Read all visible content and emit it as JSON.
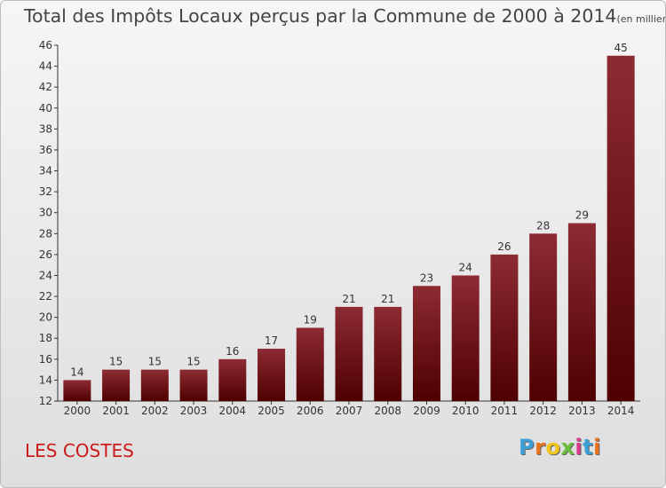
{
  "colors": {
    "bar_light": "#8d2b33",
    "bar_dark": "#4e0000",
    "commune": "#cc1a1a",
    "logo": [
      "#3fa0d8",
      "#e8731c",
      "#f0c419",
      "#6cbf3c",
      "#d83a8c",
      "#3fa0d8",
      "#e8731c"
    ]
  },
  "chart_data": {
    "type": "bar",
    "title": "Total des Impôts Locaux perçus par la Commune de 2000 à 2014",
    "title_unit": "(en milliers d'€)",
    "categories": [
      "2000",
      "2001",
      "2002",
      "2003",
      "2004",
      "2005",
      "2006",
      "2007",
      "2008",
      "2009",
      "2010",
      "2011",
      "2012",
      "2013",
      "2014"
    ],
    "values": [
      14,
      15,
      15,
      15,
      16,
      17,
      19,
      21,
      21,
      23,
      24,
      26,
      28,
      29,
      45
    ],
    "ylim": [
      12,
      46
    ],
    "yticks": [
      12,
      14,
      16,
      18,
      20,
      22,
      24,
      26,
      28,
      30,
      32,
      34,
      36,
      38,
      40,
      42,
      44,
      46
    ],
    "grid": false,
    "legend": "none"
  },
  "commune_name": "LES COSTES",
  "logo_text": "Proxiti"
}
